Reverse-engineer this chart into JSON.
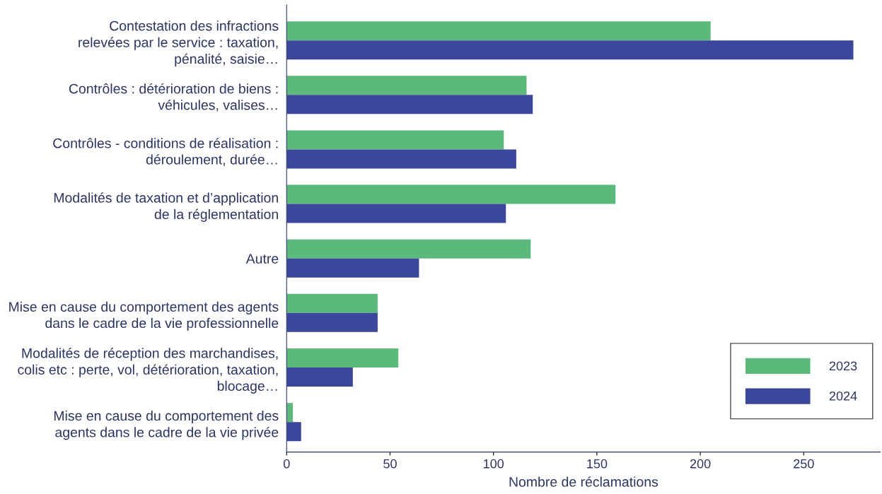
{
  "chart_data": {
    "type": "bar",
    "orientation": "horizontal",
    "xlabel": "Nombre de réclamations",
    "categories": [
      "Contestation des infractions\nrelevées par le service : taxation,\npénalité, saisie…",
      "Contrôles : détérioration de biens :\nvéhicules, valises…",
      "Contrôles - conditions de réalisation :\ndéroulement, durée…",
      "Modalités de taxation et d’application\nde la réglementation",
      "Autre",
      "Mise en cause du comportement des agents\ndans le cadre de la vie professionnelle",
      "Modalités de réception des marchandises,\ncolis etc : perte, vol, détérioration, taxation,\nblocage…",
      "Mise en cause du comportement des\nagents dans le cadre de la vie privée"
    ],
    "series": [
      {
        "name": "2023",
        "color": "#5bb97b",
        "values": [
          205,
          116,
          105,
          159,
          118,
          44,
          54,
          3
        ]
      },
      {
        "name": "2024",
        "color": "#3a479b",
        "values": [
          274,
          119,
          111,
          106,
          64,
          44,
          32,
          7
        ]
      }
    ],
    "xlim": [
      0,
      287
    ],
    "xticks": [
      0,
      50,
      100,
      150,
      200,
      250
    ],
    "grid": false,
    "legend": "bottom right"
  }
}
